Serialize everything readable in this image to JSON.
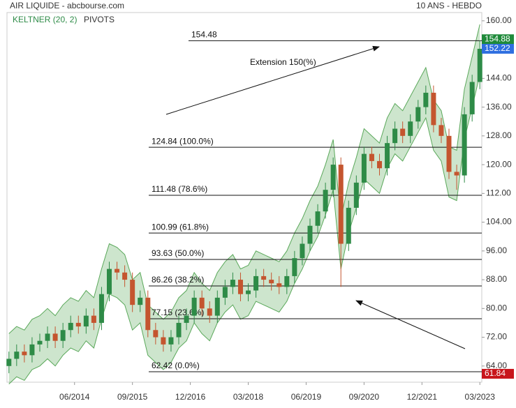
{
  "chart_data": {
    "type": "candlestick",
    "title": "AIR LIQUIDE - abcbourse.com",
    "subtitle": "10 ANS - HEBDO",
    "indicators": [
      "KELTNER (20, 2)",
      "PIVOTS"
    ],
    "annotation": "Extension 150(%)",
    "x": [
      0,
      2,
      4,
      6,
      8,
      10,
      12,
      14,
      16,
      18,
      20,
      22,
      24,
      26,
      28,
      30,
      32,
      34,
      36,
      38,
      40,
      42,
      44,
      46,
      48,
      50,
      52,
      54,
      56,
      58,
      60,
      62,
      64,
      66,
      68,
      70,
      72,
      74,
      76,
      78,
      80,
      82,
      84,
      86,
      88,
      90,
      92,
      94,
      96,
      98,
      100,
      102,
      104,
      106,
      108,
      110,
      112,
      114,
      116,
      118,
      120,
      122
    ],
    "open": [
      64,
      66,
      68,
      67,
      70,
      71,
      73,
      71,
      74,
      76,
      75,
      78,
      76,
      84,
      91,
      90,
      88,
      81,
      83,
      74,
      72,
      70,
      72,
      76,
      78,
      83,
      80,
      78,
      83,
      86,
      88,
      84,
      85,
      89,
      88,
      87,
      86,
      89,
      94,
      98,
      103,
      107,
      113,
      120,
      98,
      108,
      115,
      123,
      121,
      119,
      126,
      130,
      128,
      132,
      136,
      140,
      131,
      128,
      118,
      117,
      134,
      143
    ],
    "high": [
      68,
      70,
      70,
      72,
      73,
      75,
      75,
      76,
      78,
      78,
      80,
      80,
      86,
      93,
      93,
      92,
      90,
      85,
      85,
      76,
      74,
      74,
      78,
      80,
      85,
      85,
      82,
      85,
      88,
      90,
      90,
      87,
      91,
      91,
      90,
      89,
      91,
      96,
      100,
      105,
      109,
      115,
      122,
      122,
      110,
      117,
      125,
      125,
      123,
      128,
      132,
      132,
      134,
      138,
      142,
      142,
      133,
      130,
      120,
      136,
      145,
      154.5
    ],
    "low": [
      62,
      64,
      65,
      65,
      68,
      69,
      69,
      69,
      72,
      73,
      73,
      74,
      74,
      82,
      88,
      86,
      79,
      79,
      72,
      70,
      68,
      68,
      70,
      74,
      76,
      78,
      76,
      76,
      81,
      84,
      82,
      82,
      83,
      86,
      85,
      84,
      84,
      87,
      92,
      96,
      101,
      105,
      111,
      86,
      96,
      106,
      113,
      119,
      117,
      117,
      124,
      126,
      126,
      130,
      134,
      129,
      126,
      116,
      113,
      115,
      132,
      141
    ],
    "close": [
      66,
      68,
      67,
      70,
      71,
      73,
      71,
      74,
      76,
      75,
      78,
      76,
      84,
      91,
      90,
      88,
      81,
      83,
      74,
      72,
      70,
      72,
      76,
      78,
      83,
      80,
      78,
      83,
      86,
      88,
      84,
      85,
      89,
      88,
      87,
      86,
      89,
      94,
      98,
      103,
      107,
      113,
      120,
      98,
      108,
      115,
      123,
      121,
      119,
      126,
      130,
      128,
      132,
      136,
      140,
      131,
      128,
      118,
      117,
      134,
      143,
      152.22
    ],
    "keltner_upper": [
      73,
      75,
      74,
      77,
      78,
      80,
      78,
      81,
      83,
      82,
      85,
      83,
      91,
      98,
      97,
      95,
      88,
      90,
      81,
      79,
      77,
      79,
      83,
      85,
      90,
      87,
      85,
      90,
      93,
      95,
      91,
      92,
      96,
      95,
      94,
      93,
      96,
      101,
      105,
      110,
      114,
      120,
      127,
      105,
      115,
      122,
      130,
      128,
      126,
      133,
      137,
      135,
      139,
      143,
      147,
      138,
      135,
      125,
      124,
      141,
      150,
      159
    ],
    "keltner_lower": [
      59,
      61,
      60,
      63,
      64,
      66,
      64,
      67,
      69,
      68,
      71,
      69,
      77,
      84,
      83,
      81,
      74,
      76,
      67,
      65,
      63,
      65,
      69,
      71,
      76,
      73,
      71,
      76,
      79,
      81,
      77,
      78,
      82,
      81,
      80,
      79,
      82,
      87,
      91,
      96,
      100,
      106,
      113,
      91,
      101,
      108,
      116,
      114,
      112,
      119,
      123,
      121,
      125,
      129,
      133,
      124,
      121,
      111,
      110,
      127,
      136,
      145
    ],
    "up_color": "#2e8b47",
    "down_color": "#c4552f",
    "band_color": "#5aa85a",
    "xlim": [
      -0.5,
      122.5
    ],
    "xticks": [
      {
        "value": 17,
        "label": "06/2014"
      },
      {
        "value": 32,
        "label": "09/2015"
      },
      {
        "value": 47,
        "label": "12/2016"
      },
      {
        "value": 62,
        "label": "03/2018"
      },
      {
        "value": 77,
        "label": "06/2019"
      },
      {
        "value": 92,
        "label": "09/2020"
      },
      {
        "value": 107,
        "label": "12/2021"
      },
      {
        "value": 122,
        "label": "03/2023"
      }
    ],
    "ylim": [
      59.5,
      162.3
    ],
    "yticks": [
      {
        "value": 64,
        "label": "64.00"
      },
      {
        "value": 72,
        "label": "72.00"
      },
      {
        "value": 80,
        "label": "80.00"
      },
      {
        "value": 88,
        "label": "88.00"
      },
      {
        "value": 96,
        "label": "96.00"
      },
      {
        "value": 104,
        "label": "104.00"
      },
      {
        "value": 112,
        "label": "112.00"
      },
      {
        "value": 120,
        "label": "120.00"
      },
      {
        "value": 128,
        "label": "128.00"
      },
      {
        "value": 136,
        "label": "136.00"
      },
      {
        "value": 144,
        "label": "144.00"
      },
      {
        "value": 152,
        "label": "152.00"
      },
      {
        "value": 160,
        "label": "160.00"
      }
    ],
    "fib_levels": [
      154.48,
      {
        "value": 124.84,
        "label": "124.84  (100.0%)"
      },
      {
        "value": 111.48,
        "label": "111.48  (78.6%)"
      },
      {
        "value": 100.99,
        "label": "100.99  (61.8%)"
      },
      {
        "value": 93.63,
        "label": "93.63  (50.0%)"
      },
      {
        "value": 86.26,
        "label": "86.26  (38.2%)"
      },
      {
        "value": 77.15,
        "label": "77.15  (23.6%)"
      },
      {
        "value": 62.42,
        "label": "62.42  (0.0%)"
      }
    ],
    "price_tags": [
      {
        "value": 154.88,
        "color": "#1f8a3a"
      },
      {
        "value": 152.22,
        "color": "#2f6fe0"
      },
      {
        "value": 61.84,
        "color": "#c8151b"
      }
    ]
  }
}
